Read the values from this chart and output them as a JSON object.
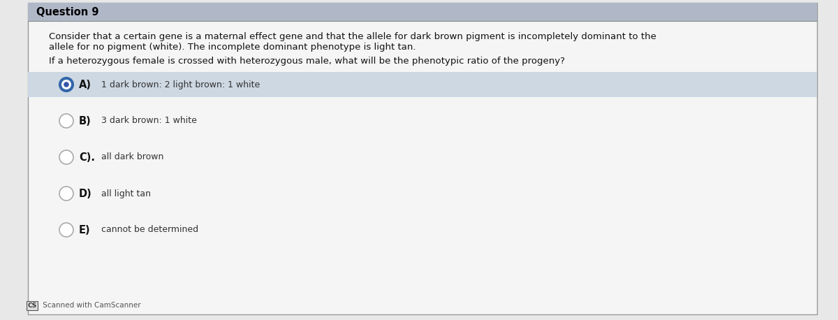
{
  "title": "Question 9",
  "title_bg": "#b0b8c8",
  "title_color": "#000000",
  "title_fontsize": 10.5,
  "body_bg": "#e8e8e8",
  "card_bg": "#f5f5f5",
  "answer_a_bg": "#cdd8e3",
  "paragraph1_line1": "Consider that a certain gene is a maternal effect gene and that the allele for dark brown pigment is incompletely dominant to the",
  "paragraph1_line2": "allele for no pigment (white). The incomplete dominant phenotype is light tan.",
  "paragraph2": "If a heterozygous female is crossed with heterozygous male, what will be the phenotypic ratio of the progeny?",
  "options": [
    {
      "label": "A)",
      "text": "1 dark brown: 2 light brown: 1 white",
      "selected": true
    },
    {
      "label": "B)",
      "text": "3 dark brown: 1 white",
      "selected": false
    },
    {
      "label": "C).",
      "text": "all dark brown",
      "selected": false
    },
    {
      "label": "D)",
      "text": "all light tan",
      "selected": false
    },
    {
      "label": "E)",
      "text": "cannot be determined",
      "selected": false
    }
  ],
  "footer_cs": "CS",
  "footer_text": " Scanned with CamScanner",
  "para_fontsize": 9.5,
  "option_label_fontsize": 10.5,
  "option_text_fontsize": 9.0,
  "footer_fontsize": 7.5
}
